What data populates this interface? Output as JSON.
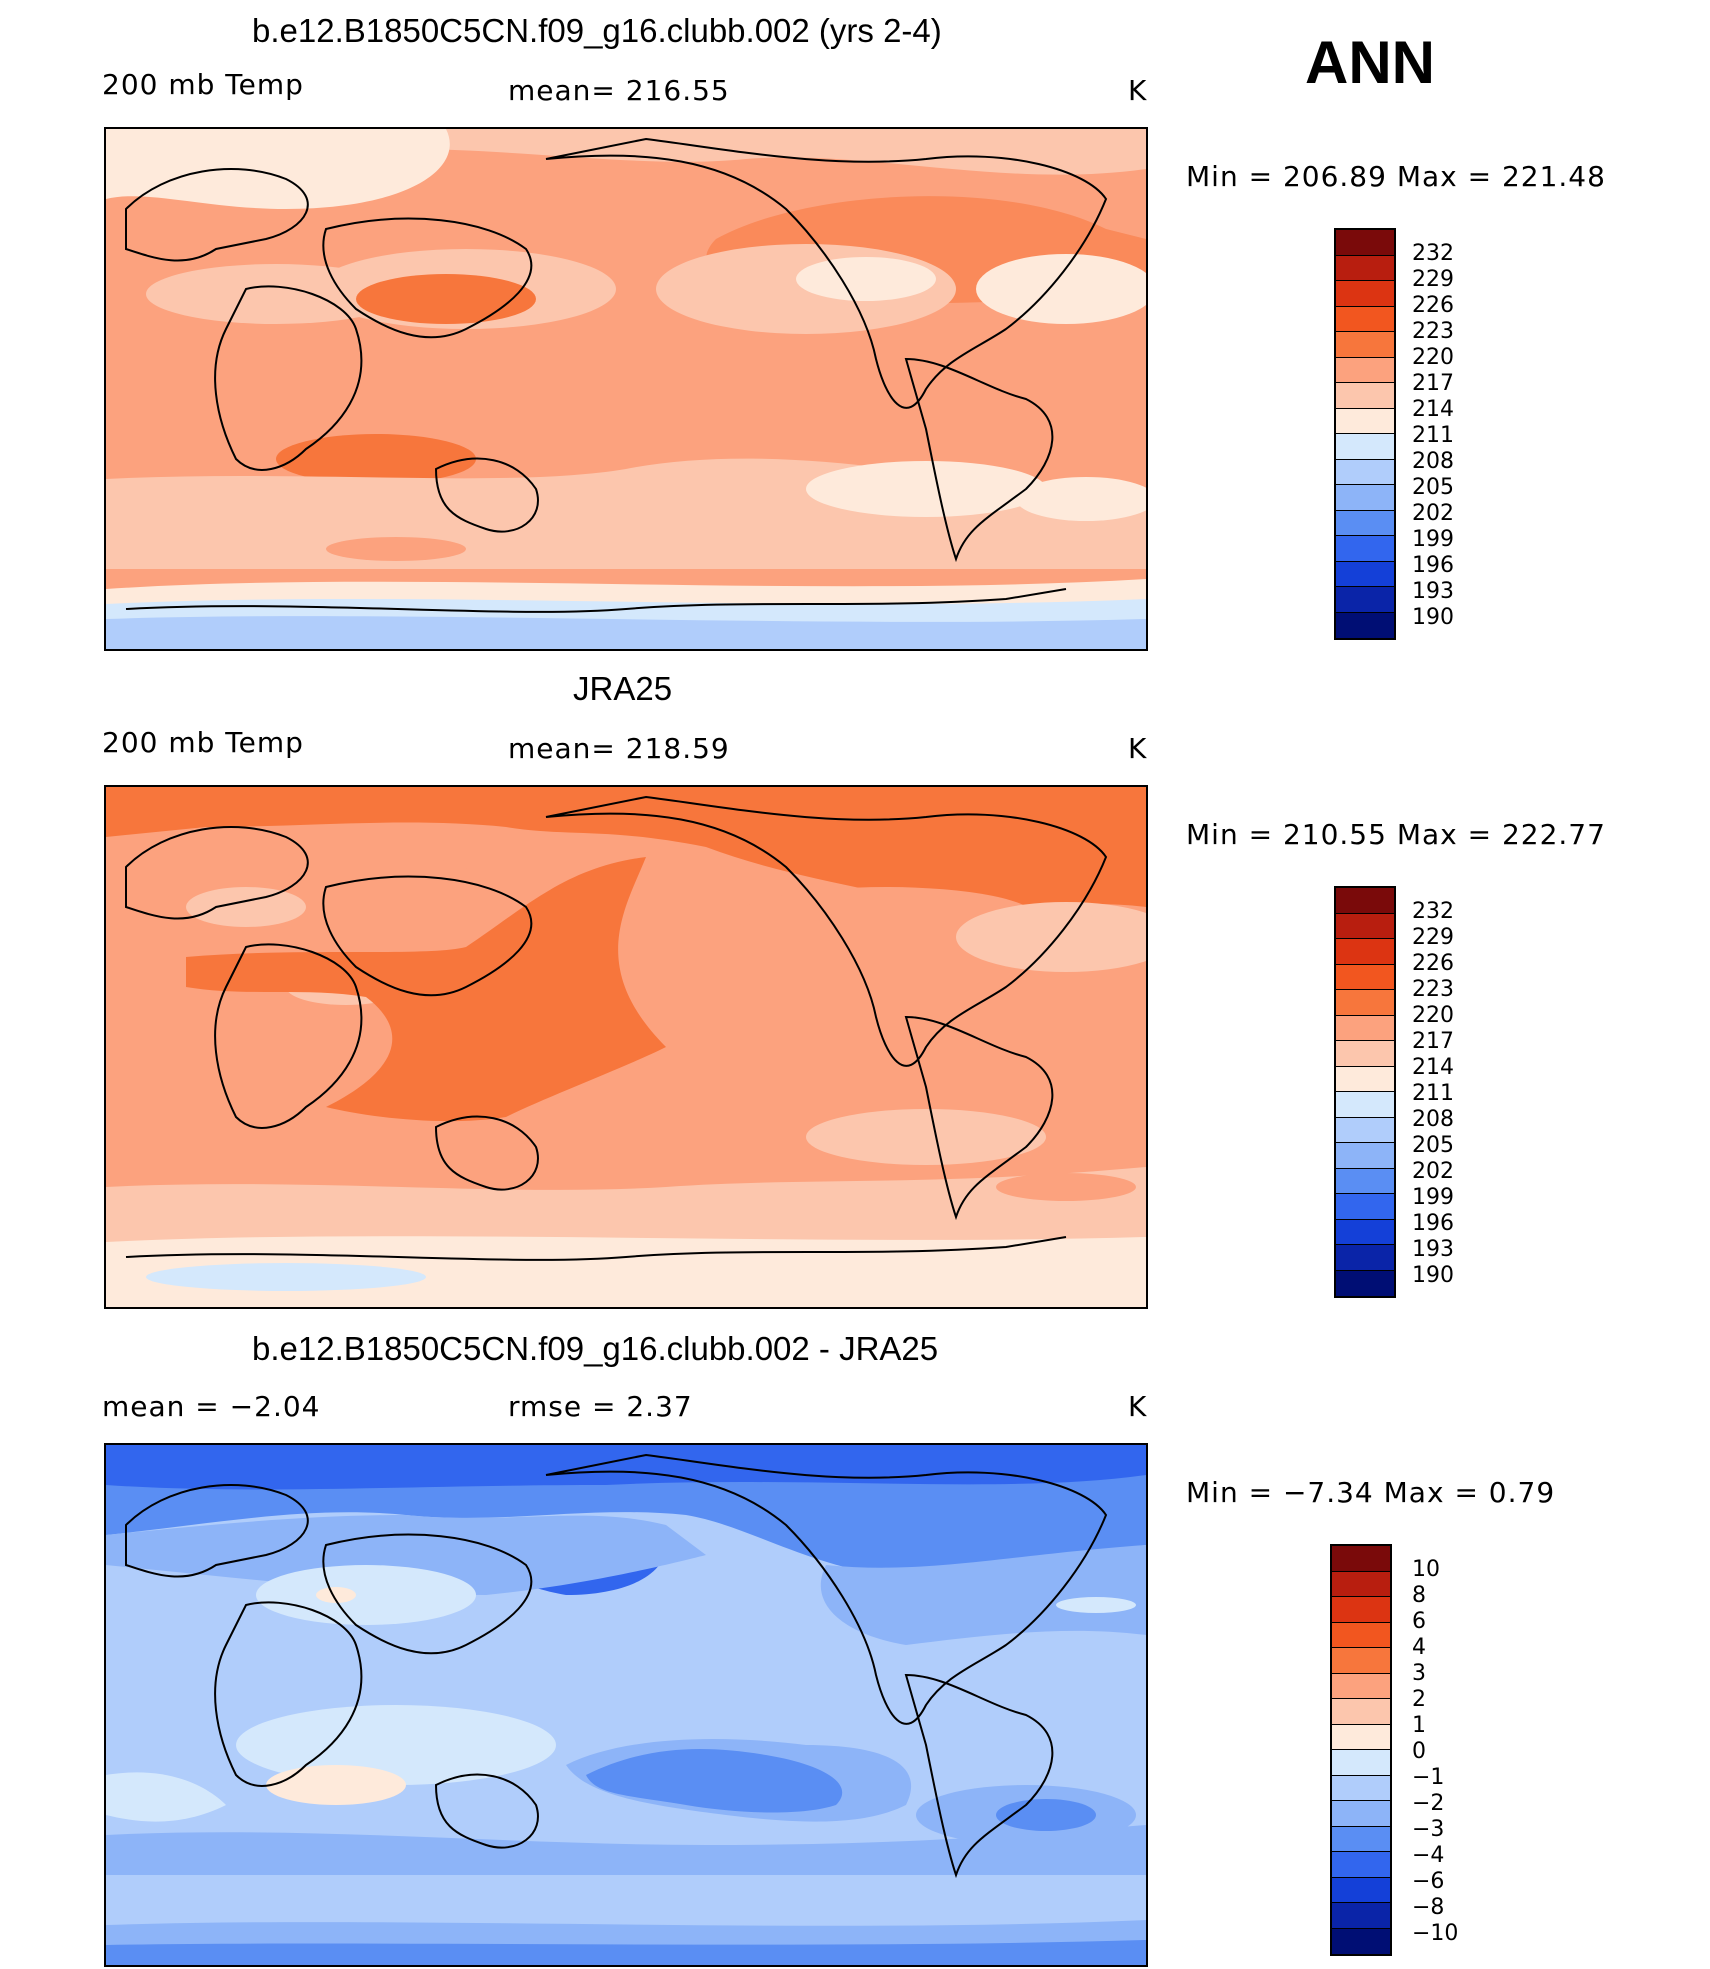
{
  "season": "ANN",
  "panels": [
    {
      "title": "b.e12.B1850C5CN.f09_g16.clubb.002 (yrs 2-4)",
      "left_label": "200 mb Temp",
      "center_label": "mean=  216.55",
      "units": "K",
      "minmax": "Min  =  206.89  Max  =  221.48",
      "colorbar_levels": [
        "232",
        "229",
        "226",
        "223",
        "220",
        "217",
        "214",
        "211",
        "208",
        "205",
        "202",
        "199",
        "196",
        "193",
        "190"
      ],
      "colorbar_colors": [
        "#7a0a0a",
        "#b81e0f",
        "#dc3412",
        "#f2561f",
        "#f7763c",
        "#fca27e",
        "#fcc6ad",
        "#feeadb",
        "#d4e8fc",
        "#b0cdfb",
        "#8db4f8",
        "#5a8ef3",
        "#3266ee",
        "#1440d8",
        "#0a24a8",
        "#000e74"
      ]
    },
    {
      "title": "JRA25",
      "left_label": "200 mb Temp",
      "center_label": "mean=  218.59",
      "units": "K",
      "minmax": "Min  =  210.55  Max  =  222.77",
      "colorbar_levels": [
        "232",
        "229",
        "226",
        "223",
        "220",
        "217",
        "214",
        "211",
        "208",
        "205",
        "202",
        "199",
        "196",
        "193",
        "190"
      ],
      "colorbar_colors": [
        "#7a0a0a",
        "#b81e0f",
        "#dc3412",
        "#f2561f",
        "#f7763c",
        "#fca27e",
        "#fcc6ad",
        "#feeadb",
        "#d4e8fc",
        "#b0cdfb",
        "#8db4f8",
        "#5a8ef3",
        "#3266ee",
        "#1440d8",
        "#0a24a8",
        "#000e74"
      ]
    },
    {
      "title": "b.e12.B1850C5CN.f09_g16.clubb.002 - JRA25",
      "left_label": "mean  =     −2.04",
      "center_label": "rmse  =      2.37",
      "units": "K",
      "minmax": "Min  =     −7.34  Max  =      0.79",
      "colorbar_levels": [
        "10",
        "8",
        "6",
        "4",
        "3",
        "2",
        "1",
        "0",
        "−1",
        "−2",
        "−3",
        "−4",
        "−6",
        "−8",
        "−10"
      ],
      "colorbar_colors": [
        "#7a0a0a",
        "#b81e0f",
        "#dc3412",
        "#f2561f",
        "#f7763c",
        "#fca27e",
        "#fcc6ad",
        "#feeadb",
        "#d4e8fc",
        "#b0cdfb",
        "#8db4f8",
        "#5a8ef3",
        "#3266ee",
        "#1440d8",
        "#0a24a8",
        "#000e74"
      ]
    }
  ]
}
